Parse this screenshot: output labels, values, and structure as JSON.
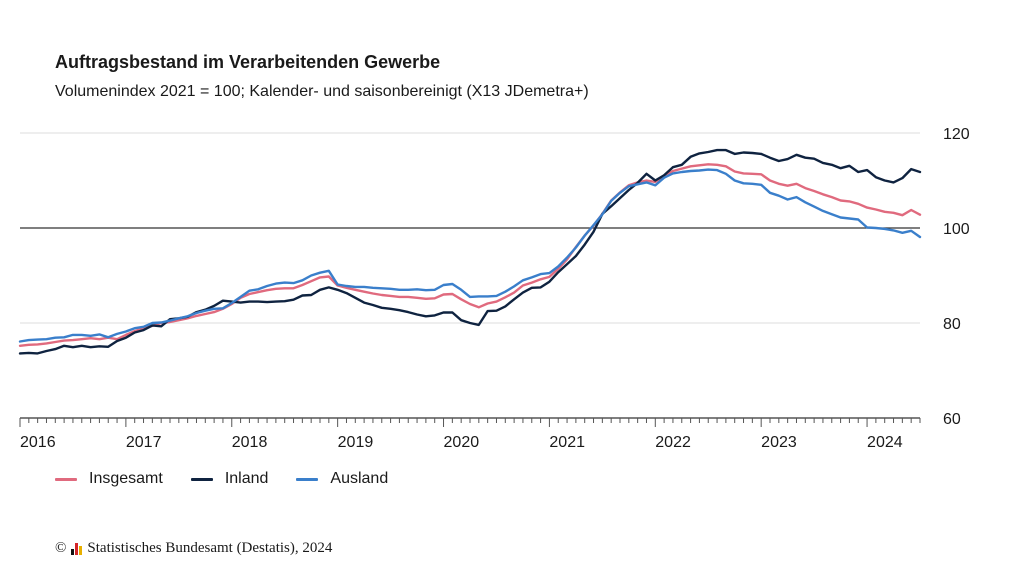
{
  "colors": {
    "insgesamt": "#e06a7e",
    "inland": "#0f2340",
    "ausland": "#3a7fcb",
    "logo_black": "#111111",
    "logo_red": "#d4262a",
    "logo_gold": "#e8b000"
  },
  "source": {
    "copyright_symbol": "©",
    "text": "Statistisches Bundesamt (Destatis), 2024"
  },
  "chart_data": {
    "type": "line",
    "title": "Auftragsbestand im Verarbeitenden Gewerbe",
    "subtitle": "Volumenindex 2021 = 100; Kalender- und saisonbereinigt (X13 JDemetra+)",
    "x_start": "2016-01",
    "x_end": "2024-08",
    "x_tick_labels": [
      "2016",
      "2017",
      "2018",
      "2019",
      "2020",
      "2021",
      "2022",
      "2023",
      "2024"
    ],
    "y_ticks": [
      60,
      80,
      100,
      120
    ],
    "ylim": [
      60,
      120
    ],
    "reference_line": 100,
    "grid": true,
    "legend_position": "bottom-left",
    "series": [
      {
        "name": "Insgesamt",
        "color_key": "insgesamt",
        "values": [
          75.2,
          75.4,
          75.5,
          75.7,
          76.0,
          76.3,
          76.4,
          76.6,
          76.8,
          76.6,
          76.9,
          76.6,
          77.5,
          78.3,
          78.9,
          79.4,
          80.0,
          80.2,
          80.6,
          81.0,
          81.5,
          81.9,
          82.3,
          83.0,
          84.0,
          85.3,
          86.1,
          86.5,
          86.9,
          87.2,
          87.3,
          87.3,
          88.0,
          88.8,
          89.6,
          89.8,
          87.9,
          87.4,
          87.0,
          86.6,
          86.2,
          85.9,
          85.7,
          85.5,
          85.5,
          85.3,
          85.1,
          85.2,
          86.0,
          86.1,
          85.0,
          84.0,
          83.3,
          84.1,
          84.5,
          85.4,
          86.4,
          87.9,
          88.5,
          89.2,
          89.7,
          91.4,
          93.4,
          96.0,
          98.4,
          100.5,
          103.0,
          105.8,
          107.5,
          109.0,
          109.6,
          110.0,
          109.7,
          111.0,
          112.0,
          112.5,
          113.0,
          113.2,
          113.4,
          113.3,
          113.0,
          111.9,
          111.5,
          111.4,
          111.3,
          110.0,
          109.3,
          108.9,
          109.3,
          108.4,
          107.8,
          107.1,
          106.5,
          105.8,
          105.6,
          105.1,
          104.3,
          103.9,
          103.4,
          103.2,
          102.7,
          103.8,
          102.8
        ]
      },
      {
        "name": "Inland",
        "color_key": "inland",
        "values": [
          73.6,
          73.7,
          73.6,
          74.1,
          74.5,
          75.2,
          74.9,
          75.2,
          74.9,
          75.1,
          75.0,
          76.2,
          76.9,
          78.0,
          78.5,
          79.5,
          79.3,
          80.8,
          81.0,
          81.3,
          82.3,
          82.8,
          83.6,
          84.7,
          84.5,
          84.3,
          84.5,
          84.5,
          84.4,
          84.5,
          84.6,
          84.9,
          85.8,
          85.9,
          87.0,
          87.5,
          87.0,
          86.3,
          85.3,
          84.3,
          83.8,
          83.2,
          83.0,
          82.7,
          82.3,
          81.8,
          81.4,
          81.6,
          82.2,
          82.2,
          80.6,
          80.0,
          79.6,
          82.5,
          82.6,
          83.5,
          85.0,
          86.4,
          87.4,
          87.5,
          88.7,
          90.7,
          92.4,
          94.1,
          96.5,
          99.2,
          103.0,
          104.6,
          106.3,
          108.0,
          109.5,
          111.4,
          110.0,
          111.1,
          112.8,
          113.3,
          115.0,
          115.7,
          116.0,
          116.4,
          116.4,
          115.6,
          115.9,
          115.8,
          115.6,
          114.8,
          114.1,
          114.5,
          115.4,
          114.8,
          114.6,
          113.7,
          113.3,
          112.6,
          113.1,
          111.8,
          112.2,
          110.7,
          110.0,
          109.6,
          110.5,
          112.4,
          111.8
        ]
      },
      {
        "name": "Ausland",
        "color_key": "ausland",
        "values": [
          76.1,
          76.4,
          76.5,
          76.6,
          76.9,
          77.0,
          77.5,
          77.5,
          77.3,
          77.6,
          77.0,
          77.7,
          78.2,
          78.9,
          79.2,
          80.0,
          80.1,
          80.5,
          81.0,
          81.4,
          82.1,
          82.6,
          83.0,
          83.1,
          84.2,
          85.5,
          86.8,
          87.1,
          87.8,
          88.3,
          88.5,
          88.4,
          89.0,
          90.0,
          90.6,
          91.0,
          88.1,
          87.8,
          87.6,
          87.6,
          87.4,
          87.3,
          87.2,
          87.0,
          87.0,
          87.1,
          86.9,
          87.0,
          88.0,
          88.2,
          87.0,
          85.5,
          85.6,
          85.6,
          85.7,
          86.6,
          87.7,
          89.0,
          89.6,
          90.3,
          90.5,
          91.9,
          93.8,
          95.9,
          98.4,
          100.6,
          102.9,
          105.7,
          107.4,
          108.8,
          109.2,
          109.6,
          109.0,
          110.6,
          111.5,
          111.8,
          112.0,
          112.1,
          112.3,
          112.2,
          111.4,
          110.0,
          109.4,
          109.3,
          109.1,
          107.4,
          106.8,
          106.0,
          106.5,
          105.4,
          104.5,
          103.6,
          102.9,
          102.2,
          102.0,
          101.8,
          100.1,
          100.0,
          99.8,
          99.5,
          99.0,
          99.4,
          98.1
        ]
      }
    ]
  }
}
